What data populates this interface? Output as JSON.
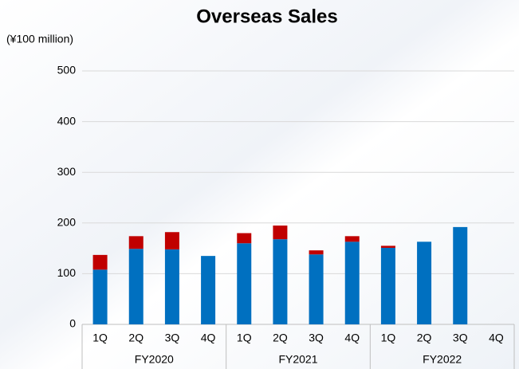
{
  "chart_data": {
    "type": "stacked-bar",
    "title": "Overseas Sales",
    "y_label": "(¥100 million)",
    "categories": [
      "1Q",
      "2Q",
      "3Q",
      "4Q",
      "1Q",
      "2Q",
      "3Q",
      "4Q",
      "1Q",
      "2Q",
      "3Q",
      "4Q"
    ],
    "groups": [
      "FY2020",
      "FY2021",
      "FY2022"
    ],
    "series": [
      {
        "color": "#0070c0",
        "values": [
          108,
          149,
          148,
          135,
          160,
          168,
          138,
          163,
          151,
          163,
          192,
          null
        ]
      },
      {
        "color": "#c00000",
        "values": [
          29,
          25,
          34,
          0,
          20,
          27,
          8,
          11,
          4,
          0,
          0,
          null
        ]
      }
    ],
    "ylim": [
      0,
      500
    ],
    "yticks": [
      0,
      100,
      200,
      300,
      400,
      500
    ],
    "grid": true
  }
}
